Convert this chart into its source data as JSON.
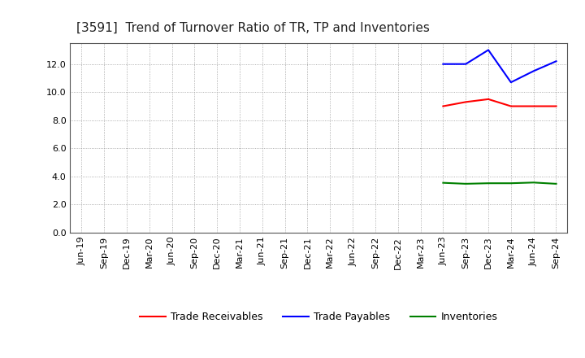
{
  "title": "[3591]  Trend of Turnover Ratio of TR, TP and Inventories",
  "x_labels": [
    "Jun-19",
    "Sep-19",
    "Dec-19",
    "Mar-20",
    "Jun-20",
    "Sep-20",
    "Dec-20",
    "Mar-21",
    "Jun-21",
    "Sep-21",
    "Dec-21",
    "Mar-22",
    "Jun-22",
    "Sep-22",
    "Dec-22",
    "Mar-23",
    "Jun-23",
    "Sep-23",
    "Dec-23",
    "Mar-24",
    "Jun-24",
    "Sep-24"
  ],
  "trade_receivables": {
    "label": "Trade Receivables",
    "color": "#ff0000",
    "data_indices": [
      16,
      17,
      18,
      19,
      20,
      21
    ],
    "data_values": [
      9.0,
      9.3,
      9.5,
      9.0,
      9.0,
      9.0
    ]
  },
  "trade_payables": {
    "label": "Trade Payables",
    "color": "#0000ff",
    "data_indices": [
      16,
      17,
      18,
      19,
      20,
      21
    ],
    "data_values": [
      12.0,
      12.0,
      13.0,
      10.7,
      11.5,
      12.2
    ]
  },
  "inventories": {
    "label": "Inventories",
    "color": "#008000",
    "data_indices": [
      16,
      17,
      18,
      19,
      20,
      21
    ],
    "data_values": [
      3.55,
      3.48,
      3.52,
      3.52,
      3.57,
      3.48
    ]
  },
  "ylim": [
    0.0,
    13.5
  ],
  "yticks": [
    0.0,
    2.0,
    4.0,
    6.0,
    8.0,
    10.0,
    12.0
  ],
  "background_color": "#ffffff",
  "grid_color": "#999999",
  "title_fontsize": 11,
  "legend_fontsize": 9,
  "axis_fontsize": 8
}
